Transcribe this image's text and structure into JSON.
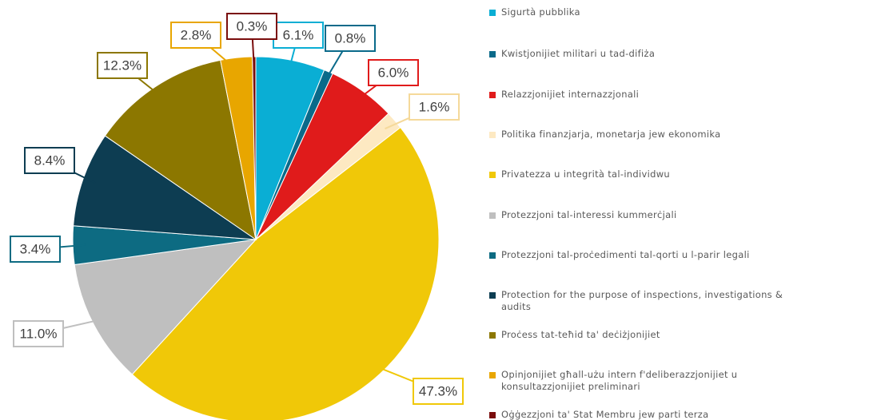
{
  "chart_data": {
    "type": "pie",
    "categories": [
      "Sigurtà pubblika",
      "Kwistjonijiet militari u tad-difiża",
      "Relazzjonijiet internazzjonali",
      "Politika finanzjarja, monetarja jew ekonomika",
      "Privatezza u integrità tal-individwu",
      "Protezzjoni tal-interessi kummerċjali",
      "Protezzjoni tal-proċedimenti tal-qorti u l-parir legali",
      "Protection for the purpose of inspections, investigations & audits",
      "Proċess tat-teħid ta' deċiżjonijiet",
      "Opinjonijiet għall-użu intern f'deliberazzjonijiet u konsultazzjonijiet preliminari",
      "Oġġezzjoni ta' Stat Membru jew parti terza"
    ],
    "values": [
      6.1,
      0.8,
      6.0,
      1.6,
      47.3,
      11.0,
      3.4,
      8.4,
      12.3,
      2.8,
      0.3
    ],
    "value_labels": [
      "6.1%",
      "0.8%",
      "6.0%",
      "1.6%",
      "47.3%",
      "11.0%",
      "3.4%",
      "8.4%",
      "12.3%",
      "2.8%",
      "0.3%"
    ],
    "colors": [
      "#0aaed4",
      "#0a6a8a",
      "#e01b1b",
      "#fde9c2",
      "#f0c808",
      "#bfbfbf",
      "#0d6b82",
      "#0d3d52",
      "#8c7700",
      "#e8a600",
      "#7a0d0d"
    ],
    "legend": "right"
  }
}
